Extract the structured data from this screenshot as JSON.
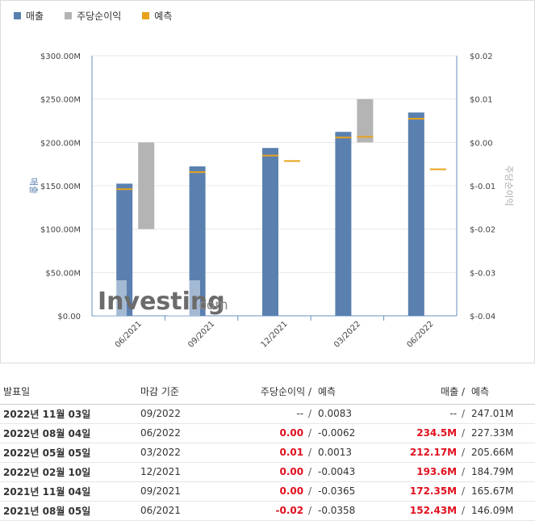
{
  "legend": [
    {
      "label": "매출",
      "color": "#5a80b0"
    },
    {
      "label": "주당순이익",
      "color": "#b4b4b4"
    },
    {
      "label": "예측",
      "color": "#e8a21c"
    }
  ],
  "chart_data": {
    "type": "bar",
    "categories": [
      "06/2021",
      "09/2021",
      "12/2021",
      "03/2022",
      "06/2022"
    ],
    "left_axis": {
      "label": "매출",
      "ticks": [
        "$300.00M",
        "$250.00M",
        "$200.00M",
        "$150.00M",
        "$100.00M",
        "$50.00M",
        "$0.00"
      ],
      "min": 0,
      "max": 300
    },
    "right_axis": {
      "label": "주당순이익",
      "ticks": [
        "$0.02",
        "$0.01",
        "$0.00",
        "$-0.01",
        "$-0.02",
        "$-0.03",
        "$-0.04"
      ],
      "min": -0.04,
      "max": 0.02
    },
    "series": [
      {
        "name": "매출",
        "unit": "M",
        "values": [
          152.43,
          172.35,
          193.6,
          212.17,
          234.5
        ]
      },
      {
        "name": "매출 예측",
        "unit": "M",
        "values": [
          146.09,
          165.67,
          184.79,
          205.66,
          227.33
        ]
      },
      {
        "name": "주당순이익",
        "values": [
          -0.02,
          0.0,
          0.0,
          0.01,
          0.0
        ]
      },
      {
        "name": "주당순이익 예측",
        "values": [
          -0.0358,
          -0.0365,
          -0.0043,
          0.0013,
          -0.0062
        ]
      }
    ],
    "watermark": {
      "brand": "Investing",
      "suffix": ".com"
    }
  },
  "table": {
    "headers": {
      "date": "발표일",
      "period": "마감 기준",
      "eps": "주당순이익",
      "sep": "/",
      "eps_forecast": "예측",
      "revenue": "매출",
      "revenue_forecast": "예측"
    },
    "rows": [
      {
        "date": "2022년 11월 03일",
        "period": "09/2022",
        "eps": "--",
        "eps_class": "",
        "eps_forecast": "0.0083",
        "revenue": "--",
        "revenue_class": "",
        "revenue_forecast": "247.01M"
      },
      {
        "date": "2022년 08월 04일",
        "period": "06/2022",
        "eps": "0.00",
        "eps_class": "red bold",
        "eps_forecast": "-0.0062",
        "revenue": "234.5M",
        "revenue_class": "red bold",
        "revenue_forecast": "227.33M"
      },
      {
        "date": "2022년 05월 05일",
        "period": "03/2022",
        "eps": "0.01",
        "eps_class": "red bold",
        "eps_forecast": "0.0013",
        "revenue": "212.17M",
        "revenue_class": "red bold",
        "revenue_forecast": "205.66M"
      },
      {
        "date": "2022년 02월 10일",
        "period": "12/2021",
        "eps": "0.00",
        "eps_class": "red bold",
        "eps_forecast": "-0.0043",
        "revenue": "193.6M",
        "revenue_class": "red bold",
        "revenue_forecast": "184.79M"
      },
      {
        "date": "2021년 11월 04일",
        "period": "09/2021",
        "eps": "0.00",
        "eps_class": "red bold",
        "eps_forecast": "-0.0365",
        "revenue": "172.35M",
        "revenue_class": "red bold",
        "revenue_forecast": "165.67M"
      },
      {
        "date": "2021년 08월 05일",
        "period": "06/2021",
        "eps": "-0.02",
        "eps_class": "red bold",
        "eps_forecast": "-0.0358",
        "revenue": "152.43M",
        "revenue_class": "red bold",
        "revenue_forecast": "146.09M"
      }
    ]
  }
}
